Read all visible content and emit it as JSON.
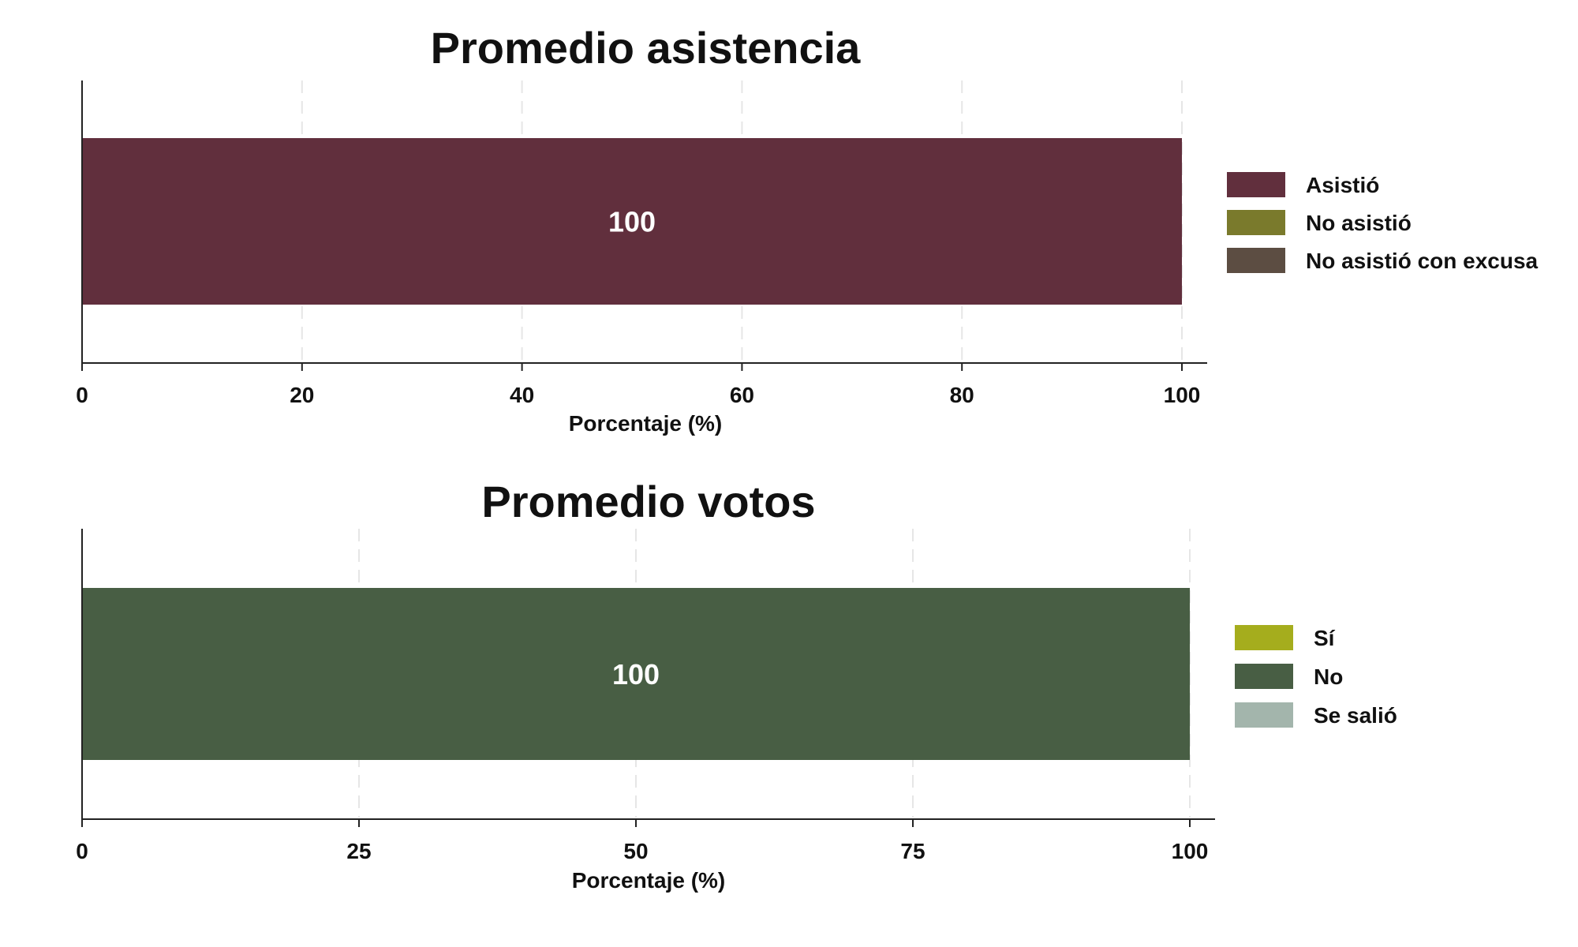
{
  "chart_data": [
    {
      "type": "bar",
      "orientation": "horizontal",
      "stacked": true,
      "title": "Promedio asistencia",
      "xlabel": "Porcentaje (%)",
      "ylabel": "",
      "xlim": [
        0,
        100
      ],
      "xticks": [
        0,
        20,
        40,
        60,
        80,
        100
      ],
      "grid": "vertical dashed",
      "legend_position": "right",
      "series": [
        {
          "name": "Asistió",
          "value": 100,
          "label": "100",
          "color": "#612f3d"
        },
        {
          "name": "No asistió",
          "value": 0,
          "label": "",
          "color": "#7a7a2c"
        },
        {
          "name": "No asistió con excusa",
          "value": 0,
          "label": "",
          "color": "#5c4d42"
        }
      ]
    },
    {
      "type": "bar",
      "orientation": "horizontal",
      "stacked": true,
      "title": "Promedio votos",
      "xlabel": "Porcentaje (%)",
      "ylabel": "",
      "xlim": [
        0,
        100
      ],
      "xticks": [
        0,
        25,
        50,
        75,
        100
      ],
      "grid": "vertical dashed",
      "legend_position": "right",
      "series": [
        {
          "name": "Sí",
          "value": 0,
          "label": "",
          "color": "#a5ad1d"
        },
        {
          "name": "No",
          "value": 100,
          "label": "100",
          "color": "#485e44"
        },
        {
          "name": "Se salió",
          "value": 0,
          "label": "",
          "color": "#a3b5ac"
        }
      ]
    }
  ]
}
